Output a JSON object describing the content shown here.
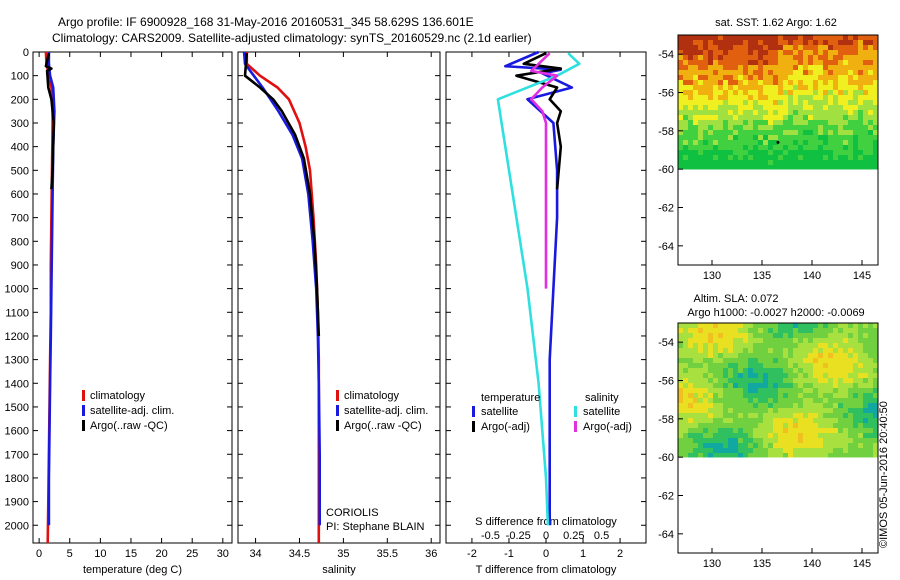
{
  "header": {
    "line1": "Argo profile: IF 6900928_168 31-May-2016 20160531_345 58.629S 136.601E",
    "line2": "Climatology: CARS2009. Satellite-adjusted climatology: synTS_20160529.nc (2.1d earlier)"
  },
  "credit": {
    "operator": "CORIOLIS",
    "pi": "PI: Stephane BLAIN",
    "stamp": "©IMOS 05-Jun-2016 20:40:50"
  },
  "colors": {
    "climatology": "#e01010",
    "satellite": "#1a1adf",
    "argo": "#000000",
    "sal_satellite": "#30e0e0",
    "sal_argo": "#e030e0"
  },
  "chart_data": [
    {
      "type": "line",
      "xlabel": "temperature (deg C)",
      "xlim": [
        -1,
        31.5
      ],
      "xticks": [
        0,
        5,
        10,
        15,
        20,
        25,
        30
      ],
      "ylim": [
        0,
        2075
      ],
      "yticks": [
        0,
        100,
        200,
        300,
        400,
        500,
        600,
        700,
        800,
        900,
        1000,
        1100,
        1200,
        1300,
        1400,
        1500,
        1600,
        1700,
        1800,
        1900,
        2000
      ],
      "y_reversed": true,
      "legend": {
        "placement": "lower-left",
        "entries": [
          "climatology",
          "satellite-adj. clim.",
          "Argo(..raw -QC)"
        ]
      },
      "series": [
        {
          "name": "climatology",
          "color": "#e01010",
          "x": [
            1.1,
            1.2,
            1.6,
            2.0,
            2.2,
            2.2,
            2.1,
            2.0,
            1.9,
            1.9,
            1.8,
            1.7,
            1.6,
            1.5,
            1.4
          ],
          "y": [
            0,
            50,
            100,
            150,
            200,
            300,
            500,
            700,
            900,
            1100,
            1300,
            1500,
            1700,
            1900,
            2075
          ]
        },
        {
          "name": "satellite-adj. clim.",
          "color": "#1a1adf",
          "x": [
            1.6,
            1.6,
            1.8,
            2.3,
            2.5,
            2.3,
            2.2,
            2.1,
            2.0,
            1.9,
            1.8,
            1.7,
            1.6,
            1.6
          ],
          "y": [
            0,
            50,
            100,
            150,
            250,
            400,
            600,
            800,
            1000,
            1200,
            1400,
            1600,
            1800,
            2000
          ]
        },
        {
          "name": "Argo(..raw -QC)",
          "color": "#000000",
          "x": [
            1.6,
            1.1,
            2.0,
            1.3,
            1.5,
            2.0,
            2.2,
            2.4,
            2.3,
            2.2,
            2.0
          ],
          "y": [
            5,
            60,
            70,
            80,
            150,
            200,
            250,
            300,
            400,
            500,
            580
          ]
        }
      ]
    },
    {
      "type": "line",
      "xlabel": "salinity",
      "xlim": [
        33.8,
        36.1
      ],
      "xticks": [
        34,
        34.5,
        35,
        35.5,
        36
      ],
      "xticklabels": [
        "34",
        "34.5",
        "35",
        "35.5",
        "36"
      ],
      "ylim": [
        0,
        2075
      ],
      "y_reversed": true,
      "legend": {
        "placement": "lower-left",
        "entries": [
          "climatology",
          "satellite-adj. clim.",
          "Argo(..raw -QC)"
        ]
      },
      "series": [
        {
          "name": "climatology",
          "color": "#e01010",
          "x": [
            33.9,
            33.9,
            34.05,
            34.25,
            34.38,
            34.5,
            34.57,
            34.62,
            34.66,
            34.69,
            34.71,
            34.72,
            34.72,
            34.72,
            34.72
          ],
          "y": [
            0,
            50,
            100,
            150,
            200,
            300,
            400,
            500,
            700,
            900,
            1100,
            1300,
            1500,
            1800,
            2075
          ]
        },
        {
          "name": "satellite-adj. clim.",
          "color": "#1a1adf",
          "x": [
            33.87,
            33.88,
            33.98,
            34.08,
            34.17,
            34.26,
            34.42,
            34.53,
            34.6,
            34.65,
            34.69,
            34.71,
            34.72,
            34.73,
            34.73
          ],
          "y": [
            0,
            50,
            100,
            150,
            200,
            250,
            350,
            450,
            600,
            800,
            1000,
            1200,
            1400,
            1700,
            2000
          ]
        },
        {
          "name": "Argo(..raw -QC)",
          "color": "#000000",
          "x": [
            33.9,
            33.88,
            34.05,
            34.2,
            34.3,
            34.45,
            34.55,
            34.62,
            34.67,
            34.7,
            34.72
          ],
          "y": [
            5,
            100,
            150,
            200,
            250,
            350,
            450,
            600,
            800,
            1000,
            1200
          ]
        }
      ]
    },
    {
      "type": "line",
      "xlabel": "T difference from climatology",
      "xlim": [
        -2.7,
        2.7
      ],
      "xticks": [
        -2,
        -1,
        0,
        1,
        2
      ],
      "x2label": "S difference from climatology",
      "x2ticks": [
        -0.5,
        -0.25,
        0,
        0.25,
        0.5
      ],
      "x2ticklabels": [
        "-0.5",
        "-0.25",
        "0",
        "0.25",
        "0.5"
      ],
      "ylim": [
        0,
        2075
      ],
      "y_reversed": true,
      "legend": {
        "placement": "lower-center",
        "temperature_title": "temperature",
        "salinity_title": "salinity",
        "entries": [
          "satellite",
          "Argo(-adj)",
          "satellite",
          "Argo(-adj)"
        ]
      },
      "series": [
        {
          "name": "temperature satellite",
          "color": "#1a1adf",
          "x": [
            -0.2,
            -1.1,
            0.4,
            -0.1,
            0.7,
            -0.5,
            0.2,
            0.3,
            0.3,
            0.2,
            0.1,
            0.1,
            0.1,
            0.1
          ],
          "y": [
            0,
            60,
            75,
            90,
            150,
            200,
            300,
            500,
            700,
            1000,
            1300,
            1600,
            1900,
            2000
          ]
        },
        {
          "name": "temperature Argo(-adj)",
          "color": "#000000",
          "x": [
            0.0,
            -0.6,
            0.4,
            -0.8,
            0.3,
            0.1,
            0.4,
            0.3,
            0.4,
            0.3
          ],
          "y": [
            5,
            50,
            70,
            100,
            150,
            200,
            250,
            300,
            400,
            580
          ]
        },
        {
          "name": "salinity satellite",
          "color": "#30e0e0",
          "x": [
            0.6,
            0.9,
            0.3,
            -1.3,
            -1.1,
            -0.8,
            -0.5,
            -0.2,
            0.0,
            0.05
          ],
          "y": [
            5,
            50,
            100,
            200,
            400,
            700,
            1000,
            1400,
            1800,
            2000
          ]
        },
        {
          "name": "salinity Argo(-adj)",
          "color": "#e030e0",
          "x": [
            0.1,
            -0.4,
            0.3,
            -0.1,
            -0.4,
            -0.1,
            0.0,
            0.0,
            0.0
          ],
          "y": [
            5,
            80,
            100,
            150,
            200,
            250,
            300,
            500,
            1000
          ]
        }
      ]
    },
    {
      "type": "heatmap",
      "title": "sat. SST: 1.62 Argo: 1.62",
      "xlim": [
        126.6,
        146.6
      ],
      "ylim": [
        -65,
        -53
      ],
      "xticks": [
        130,
        135,
        140,
        145
      ],
      "yticks": [
        -54,
        -56,
        -58,
        -60,
        -62,
        -64
      ],
      "data_extent": {
        "x": [
          126.6,
          146.4
        ],
        "y": [
          -60,
          -52.8
        ]
      },
      "palette": [
        "#10c040",
        "#40d040",
        "#a0e040",
        "#f0f020",
        "#f0b010",
        "#e06010",
        "#b03010"
      ],
      "marker": {
        "x": 136.6,
        "y": -58.6
      }
    },
    {
      "type": "heatmap",
      "title": "Altim. SLA: 0.072",
      "subtitle": "Argo h1000: -0.0027 h2000: -0.0069",
      "xlim": [
        126.6,
        146.6
      ],
      "ylim": [
        -65,
        -53
      ],
      "xticks": [
        130,
        135,
        140,
        145
      ],
      "yticks": [
        -54,
        -56,
        -58,
        -60,
        -62,
        -64
      ],
      "data_extent": {
        "x": [
          126.6,
          146.4
        ],
        "y": [
          -60,
          -52.8
        ]
      },
      "palette": [
        "#10a8a0",
        "#30c060",
        "#70d040",
        "#a8e040",
        "#e8e020",
        "#f0c020"
      ]
    }
  ]
}
